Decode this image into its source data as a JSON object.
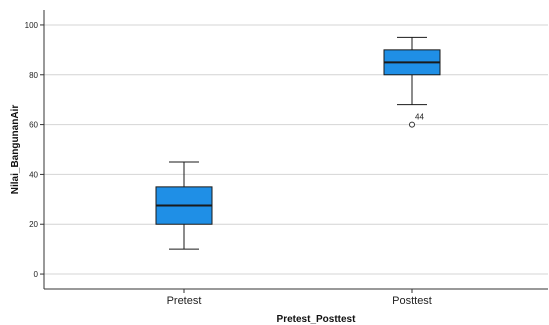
{
  "chart_data": {
    "type": "box",
    "title": "",
    "xlabel": "Pretest_Posttest",
    "ylabel": "Nilai_BangunanAir",
    "ylim": [
      -6,
      106
    ],
    "yticks": [
      0,
      20,
      40,
      60,
      80,
      100
    ],
    "yticklabels": [
      "0",
      "20",
      "40",
      "60",
      "80",
      "100"
    ],
    "grid": true,
    "categories": [
      "Pretest",
      "Posttest"
    ],
    "boxes": [
      {
        "category": "Pretest",
        "min": 10,
        "q1": 20,
        "median": 27.5,
        "q3": 35,
        "max": 45,
        "outliers": []
      },
      {
        "category": "Posttest",
        "min": 68,
        "q1": 80,
        "median": 85,
        "q3": 90,
        "max": 95,
        "outliers": [
          {
            "value": 60,
            "label": "44"
          }
        ]
      }
    ],
    "colors": {
      "box_fill": "#1f8fe6",
      "box_stroke": "#1a1a1a",
      "grid": "#d4d4d4",
      "axis": "#333333",
      "background": "#ffffff"
    }
  }
}
